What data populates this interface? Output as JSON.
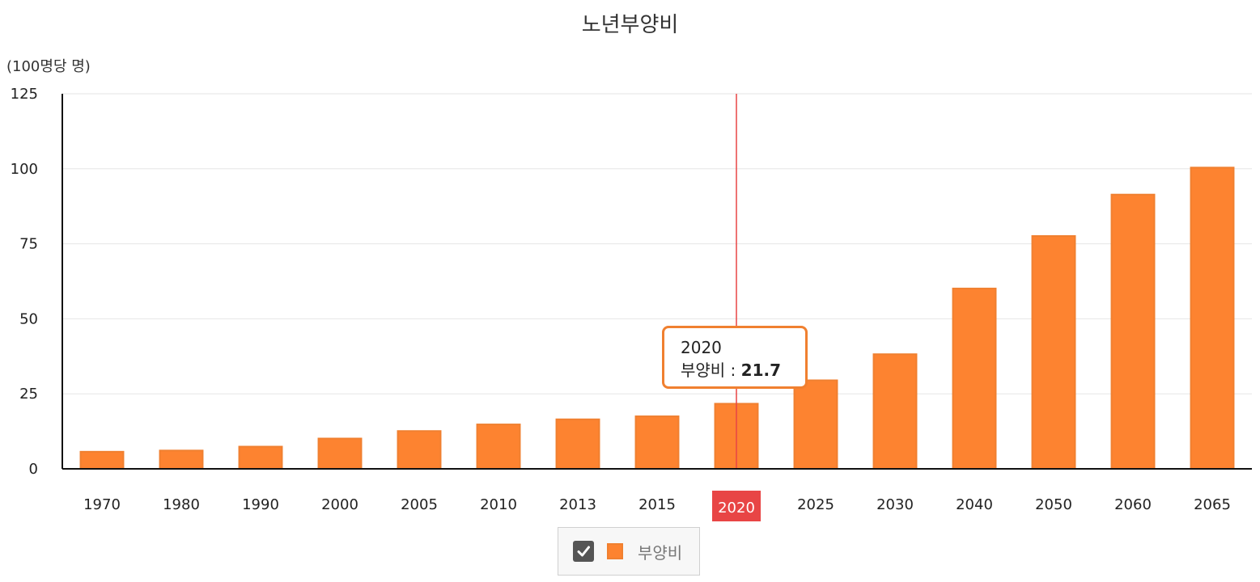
{
  "chart_data": {
    "type": "bar",
    "title": "노년부양비",
    "ylabel": "(100명당 명)",
    "categories": [
      "1970",
      "1980",
      "1990",
      "2000",
      "2005",
      "2010",
      "2013",
      "2015",
      "2020",
      "2025",
      "2030",
      "2040",
      "2050",
      "2060",
      "2065"
    ],
    "series": [
      {
        "name": "부양비",
        "values": [
          5.7,
          6.1,
          7.4,
          10.1,
          12.6,
          14.8,
          16.5,
          17.5,
          21.7,
          29.5,
          38.2,
          60.1,
          77.6,
          91.4,
          100.4
        ],
        "color": "#fd8330",
        "border_color": "#f08030"
      }
    ],
    "ylim": [
      0,
      125
    ],
    "yticks": [
      0,
      25,
      50,
      75,
      100,
      125
    ],
    "grid": true,
    "highlight_category": "2020",
    "highlight_color": "#e84545",
    "legend": {
      "placement": "bottom-center",
      "checked": true
    }
  },
  "tooltip": {
    "category": "2020",
    "label": "부양비",
    "value": "21.7"
  }
}
